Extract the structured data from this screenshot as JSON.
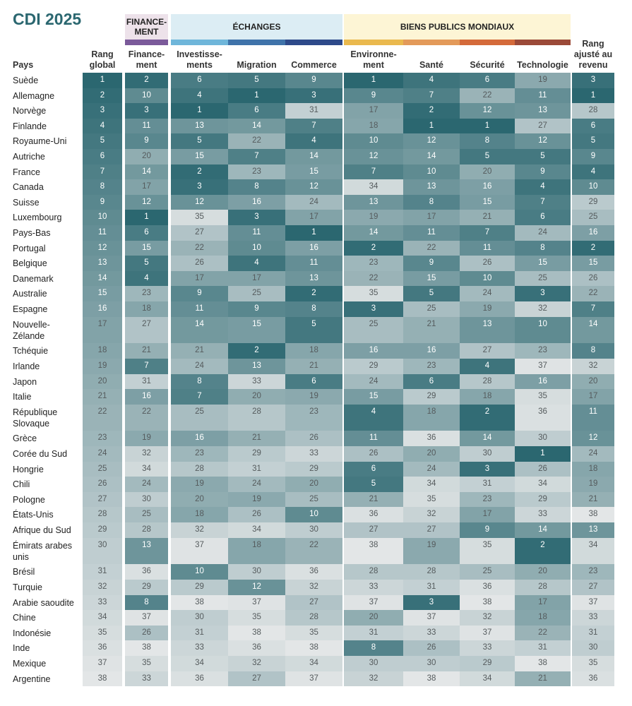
{
  "title": "CDI 2025",
  "groups": [
    {
      "label": "FINANCE-\nMENT",
      "bg": "#ede2ea"
    },
    {
      "label": "ÉCHANGES",
      "bg": "#dcedf4"
    },
    {
      "label": "BIENS PUBLICS MONDIAUX",
      "bg": "#fdf5d5"
    }
  ],
  "column_colors": [
    "#7b5a9a",
    "#6fb6da",
    "#3f73aa",
    "#2e4a8a",
    "#eab94e",
    "#e39a5a",
    "#d46a3a",
    "#9b4a38"
  ],
  "columns": [
    "Pays",
    "Rang global",
    "Finance-ment",
    "Investisse-ments",
    "Migration",
    "Commerce",
    "Environne-ment",
    "Santé",
    "Sécurité",
    "Technologie",
    "Rang ajusté au revenu"
  ],
  "color_scale": {
    "best": "#2b6770",
    "worst": "#e3e6e7"
  },
  "chart_data": {
    "type": "heatmap",
    "title": "CDI 2025",
    "columns": [
      "Rang global",
      "Financement",
      "Investissements",
      "Migration",
      "Commerce",
      "Environnement",
      "Santé",
      "Sécurité",
      "Technologie",
      "Rang ajusté au revenu"
    ],
    "rows": [
      {
        "country": "Suède",
        "values": [
          1,
          2,
          6,
          5,
          9,
          1,
          4,
          6,
          19,
          3
        ]
      },
      {
        "country": "Allemagne",
        "values": [
          2,
          10,
          4,
          1,
          3,
          9,
          7,
          22,
          11,
          1
        ]
      },
      {
        "country": "Norvège",
        "values": [
          3,
          3,
          1,
          6,
          31,
          17,
          2,
          12,
          13,
          28
        ]
      },
      {
        "country": "Finlande",
        "values": [
          4,
          11,
          13,
          14,
          7,
          18,
          1,
          1,
          27,
          6
        ]
      },
      {
        "country": "Royaume-Uni",
        "values": [
          5,
          9,
          5,
          22,
          4,
          10,
          12,
          8,
          12,
          5
        ]
      },
      {
        "country": "Autriche",
        "values": [
          6,
          20,
          15,
          7,
          14,
          12,
          14,
          5,
          5,
          9
        ]
      },
      {
        "country": "France",
        "values": [
          7,
          14,
          2,
          23,
          15,
          7,
          10,
          20,
          9,
          4
        ]
      },
      {
        "country": "Canada",
        "values": [
          8,
          17,
          3,
          8,
          12,
          34,
          13,
          16,
          4,
          10
        ]
      },
      {
        "country": "Suisse",
        "values": [
          9,
          12,
          12,
          16,
          24,
          13,
          8,
          15,
          7,
          29
        ]
      },
      {
        "country": "Luxembourg",
        "values": [
          10,
          1,
          35,
          3,
          17,
          19,
          17,
          21,
          6,
          25
        ]
      },
      {
        "country": "Pays-Bas",
        "values": [
          11,
          6,
          27,
          11,
          1,
          14,
          11,
          7,
          24,
          16
        ]
      },
      {
        "country": "Portugal",
        "values": [
          12,
          15,
          22,
          10,
          16,
          2,
          22,
          11,
          8,
          2
        ]
      },
      {
        "country": "Belgique",
        "values": [
          13,
          5,
          26,
          4,
          11,
          23,
          9,
          26,
          15,
          15
        ]
      },
      {
        "country": "Danemark",
        "values": [
          14,
          4,
          17,
          17,
          13,
          22,
          15,
          10,
          25,
          26
        ]
      },
      {
        "country": "Australie",
        "values": [
          15,
          23,
          9,
          25,
          2,
          35,
          5,
          24,
          3,
          22
        ]
      },
      {
        "country": "Espagne",
        "values": [
          16,
          18,
          11,
          9,
          8,
          3,
          25,
          19,
          32,
          7
        ]
      },
      {
        "country": "Nouvelle-\nZélande",
        "values": [
          17,
          27,
          14,
          15,
          5,
          25,
          21,
          13,
          10,
          14
        ]
      },
      {
        "country": "Tchéquie",
        "values": [
          18,
          21,
          21,
          2,
          18,
          16,
          16,
          27,
          23,
          8
        ]
      },
      {
        "country": "Irlande",
        "values": [
          19,
          7,
          24,
          13,
          21,
          29,
          23,
          4,
          37,
          32
        ]
      },
      {
        "country": "Japon",
        "values": [
          20,
          31,
          8,
          33,
          6,
          24,
          6,
          28,
          16,
          20
        ]
      },
      {
        "country": "Italie",
        "values": [
          21,
          16,
          7,
          20,
          19,
          15,
          29,
          18,
          35,
          17
        ]
      },
      {
        "country": "République\nSlovaque",
        "values": [
          22,
          22,
          25,
          28,
          23,
          4,
          18,
          2,
          36,
          11
        ]
      },
      {
        "country": "Grèce",
        "values": [
          23,
          19,
          16,
          21,
          26,
          11,
          36,
          14,
          30,
          12
        ]
      },
      {
        "country": "Corée du Sud",
        "values": [
          24,
          32,
          23,
          29,
          33,
          26,
          20,
          30,
          1,
          24
        ]
      },
      {
        "country": "Hongrie",
        "values": [
          25,
          34,
          28,
          31,
          29,
          6,
          24,
          3,
          26,
          18
        ]
      },
      {
        "country": "Chili",
        "values": [
          26,
          24,
          19,
          24,
          20,
          5,
          34,
          31,
          34,
          19
        ]
      },
      {
        "country": "Pologne",
        "values": [
          27,
          30,
          20,
          19,
          25,
          21,
          35,
          23,
          29,
          21
        ]
      },
      {
        "country": "États-Unis",
        "values": [
          28,
          25,
          18,
          26,
          10,
          36,
          32,
          17,
          33,
          38
        ]
      },
      {
        "country": "Afrique du Sud",
        "values": [
          29,
          28,
          32,
          34,
          30,
          27,
          27,
          9,
          14,
          13
        ]
      },
      {
        "country": "Émirats arabes\nunis",
        "values": [
          30,
          13,
          37,
          18,
          22,
          38,
          19,
          35,
          2,
          34
        ]
      },
      {
        "country": "Brésil",
        "values": [
          31,
          36,
          10,
          30,
          36,
          28,
          28,
          25,
          20,
          23
        ]
      },
      {
        "country": "Turquie",
        "values": [
          32,
          29,
          29,
          12,
          32,
          33,
          31,
          36,
          28,
          27
        ]
      },
      {
        "country": "Arabie saoudite",
        "values": [
          33,
          8,
          38,
          37,
          27,
          37,
          3,
          38,
          17,
          37
        ]
      },
      {
        "country": "Chine",
        "values": [
          34,
          37,
          30,
          35,
          28,
          20,
          37,
          32,
          18,
          33
        ]
      },
      {
        "country": "Indonésie",
        "values": [
          35,
          26,
          31,
          38,
          35,
          31,
          33,
          37,
          22,
          31
        ]
      },
      {
        "country": "Inde",
        "values": [
          36,
          38,
          33,
          36,
          38,
          8,
          26,
          33,
          31,
          30
        ]
      },
      {
        "country": "Mexique",
        "values": [
          37,
          35,
          34,
          32,
          34,
          30,
          30,
          29,
          38,
          35
        ]
      },
      {
        "country": "Argentine",
        "values": [
          38,
          33,
          36,
          27,
          37,
          32,
          38,
          34,
          21,
          36
        ]
      }
    ]
  }
}
